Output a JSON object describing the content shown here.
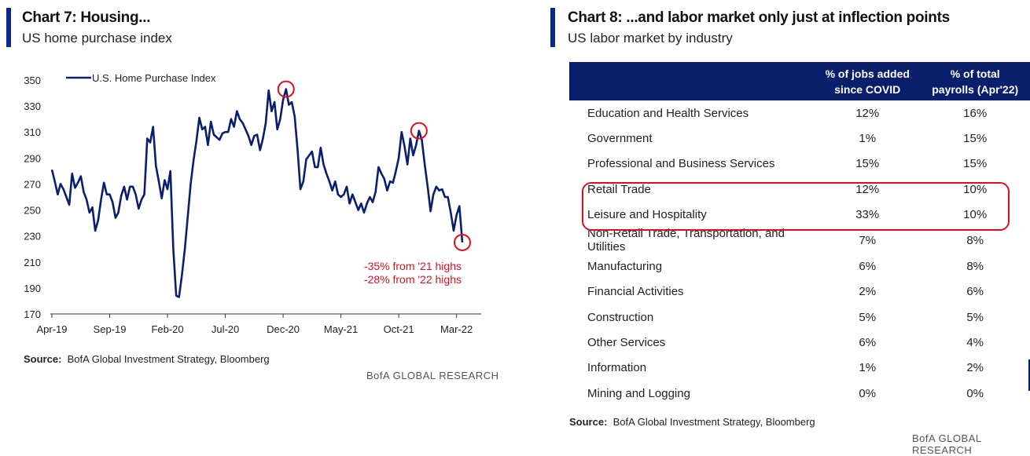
{
  "left": {
    "title": "Chart 7: Housing...",
    "subtitle": "US home purchase index",
    "source_label": "Source:",
    "source_text": "BofA Global Investment Strategy, Bloomberg",
    "brand": "BofA GLOBAL RESEARCH"
  },
  "right": {
    "title": "Chart 8: ...and labor market only just at inflection points",
    "subtitle": "US labor market by industry",
    "source_label": "Source:",
    "source_text": "BofA Global Investment Strategy, Bloomberg",
    "brand": "BofA GLOBAL RESEARCH"
  },
  "colors": {
    "line": "#0a1f6b",
    "accent": "#0a2a8a",
    "highlight": "#d81020"
  },
  "chart_data": [
    {
      "type": "line",
      "title": "US home purchase index",
      "xlabel": "",
      "ylabel": "",
      "ylim": [
        170,
        350
      ],
      "yticks": [
        350,
        330,
        310,
        290,
        270,
        250,
        230,
        210,
        190,
        170
      ],
      "xtick_labels": [
        "Apr-19",
        "Sep-19",
        "Feb-20",
        "Jul-20",
        "Dec-20",
        "May-21",
        "Oct-21",
        "Mar-22"
      ],
      "xtick_index": [
        0,
        20,
        40,
        60,
        80,
        100,
        120,
        140
      ],
      "legend": "U.S. Home Purchase Index",
      "annotations": [
        "-35% from '21 highs",
        "-28% from '22 highs"
      ],
      "series": [
        {
          "name": "U.S. Home Purchase Index",
          "values": [
            281,
            272,
            262,
            270,
            266,
            260,
            254,
            278,
            267,
            271,
            276,
            264,
            258,
            248,
            252,
            234,
            242,
            258,
            271,
            262,
            262,
            256,
            244,
            248,
            261,
            268,
            258,
            268,
            268,
            262,
            251,
            258,
            262,
            305,
            302,
            314,
            284,
            272,
            259,
            273,
            266,
            280,
            220,
            184,
            183,
            200,
            220,
            245,
            270,
            288,
            303,
            321,
            312,
            314,
            300,
            318,
            308,
            306,
            304,
            309,
            310,
            310,
            320,
            314,
            326,
            320,
            317,
            312,
            307,
            300,
            307,
            308,
            296,
            305,
            317,
            342,
            326,
            333,
            312,
            320,
            335,
            343,
            331,
            333,
            322,
            296,
            266,
            272,
            289,
            292,
            295,
            283,
            283,
            298,
            285,
            278,
            272,
            265,
            272,
            262,
            260,
            262,
            268,
            255,
            262,
            256,
            250,
            255,
            248,
            255,
            260,
            256,
            264,
            283,
            278,
            274,
            265,
            272,
            271,
            280,
            290,
            310,
            299,
            285,
            305,
            292,
            300,
            311,
            304,
            285,
            268,
            249,
            262,
            268,
            265,
            266,
            260,
            260,
            248,
            234,
            246,
            253,
            225
          ]
        }
      ]
    },
    {
      "type": "table",
      "title": "US labor market by industry",
      "columns": [
        "",
        "% of jobs added since COVID",
        "% of total payrolls (Apr'22)"
      ],
      "header_lines": [
        [
          "% of jobs added",
          "since COVID"
        ],
        [
          "% of total",
          "payrolls (Apr'22)"
        ]
      ],
      "rows": [
        {
          "industry": "Education and Health Services",
          "jobs_added": "12%",
          "payrolls": "16%"
        },
        {
          "industry": "Government",
          "jobs_added": "1%",
          "payrolls": "15%"
        },
        {
          "industry": "Professional and Business Services",
          "jobs_added": "15%",
          "payrolls": "15%"
        },
        {
          "industry": "Retail Trade",
          "jobs_added": "12%",
          "payrolls": "10%"
        },
        {
          "industry": "Leisure and Hospitality",
          "jobs_added": "33%",
          "payrolls": "10%"
        },
        {
          "industry": "Non-Retail Trade, Transportation, and Utilities",
          "jobs_added": "7%",
          "payrolls": "8%"
        },
        {
          "industry": "Manufacturing",
          "jobs_added": "6%",
          "payrolls": "8%"
        },
        {
          "industry": "Financial Activities",
          "jobs_added": "2%",
          "payrolls": "6%"
        },
        {
          "industry": "Construction",
          "jobs_added": "5%",
          "payrolls": "5%"
        },
        {
          "industry": "Other Services",
          "jobs_added": "6%",
          "payrolls": "4%"
        },
        {
          "industry": "Information",
          "jobs_added": "1%",
          "payrolls": "2%"
        },
        {
          "industry": "Mining and Logging",
          "jobs_added": "0%",
          "payrolls": "0%"
        }
      ],
      "highlighted_rows": [
        "Retail Trade",
        "Leisure and Hospitality"
      ]
    }
  ]
}
